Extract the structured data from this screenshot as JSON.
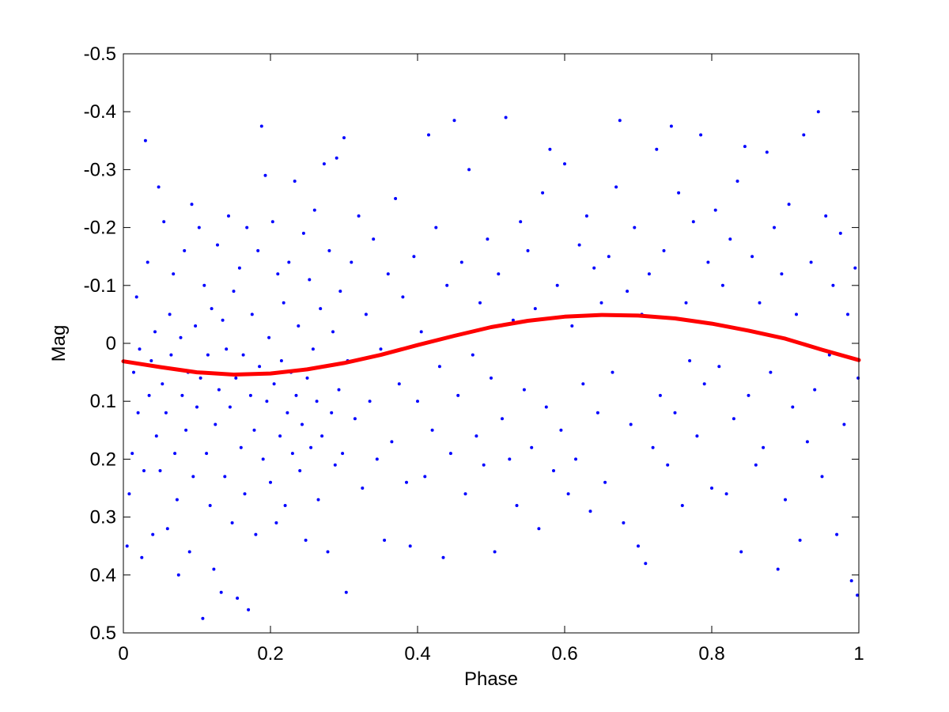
{
  "chart_data": {
    "type": "scatter",
    "title": "",
    "xlabel": "Phase",
    "ylabel": "Mag",
    "xlim": [
      0,
      1
    ],
    "ylim": [
      -0.5,
      0.5
    ],
    "y_reversed": true,
    "grid": false,
    "legend": "none",
    "x_ticks": [
      "0",
      "0.2",
      "0.4",
      "0.6",
      "0.8",
      "1"
    ],
    "x_tick_values": [
      0,
      0.2,
      0.4,
      0.6,
      0.8,
      1
    ],
    "y_ticks": [
      "-0.5",
      "-0.4",
      "-0.3",
      "-0.2",
      "-0.1",
      "0",
      "0.1",
      "0.2",
      "0.3",
      "0.4",
      "0.5"
    ],
    "y_tick_values": [
      -0.5,
      -0.4,
      -0.3,
      -0.2,
      -0.1,
      0,
      0.1,
      0.2,
      0.3,
      0.4,
      0.5
    ],
    "series": [
      {
        "type": "scatter",
        "color": "#0000ff",
        "marker": "dot",
        "points": [
          [
            0.005,
            0.35
          ],
          [
            0.008,
            0.26
          ],
          [
            0.012,
            0.19
          ],
          [
            0.014,
            0.05
          ],
          [
            0.018,
            -0.08
          ],
          [
            0.02,
            0.12
          ],
          [
            0.022,
            0.01
          ],
          [
            0.025,
            0.37
          ],
          [
            0.028,
            0.22
          ],
          [
            0.03,
            -0.35
          ],
          [
            0.033,
            -0.14
          ],
          [
            0.035,
            0.09
          ],
          [
            0.038,
            0.03
          ],
          [
            0.04,
            0.33
          ],
          [
            0.043,
            -0.02
          ],
          [
            0.045,
            0.16
          ],
          [
            0.048,
            -0.27
          ],
          [
            0.05,
            0.22
          ],
          [
            0.053,
            0.07
          ],
          [
            0.055,
            -0.21
          ],
          [
            0.058,
            0.12
          ],
          [
            0.06,
            0.32
          ],
          [
            0.063,
            -0.05
          ],
          [
            0.065,
            0.02
          ],
          [
            0.068,
            -0.12
          ],
          [
            0.07,
            0.19
          ],
          [
            0.073,
            0.27
          ],
          [
            0.075,
            0.4
          ],
          [
            0.078,
            -0.01
          ],
          [
            0.08,
            0.09
          ],
          [
            0.083,
            -0.16
          ],
          [
            0.085,
            0.15
          ],
          [
            0.088,
            0.05
          ],
          [
            0.09,
            0.36
          ],
          [
            0.093,
            -0.24
          ],
          [
            0.095,
            0.23
          ],
          [
            0.098,
            -0.03
          ],
          [
            0.1,
            0.11
          ],
          [
            0.103,
            -0.2
          ],
          [
            0.105,
            0.06
          ],
          [
            0.108,
            0.475
          ],
          [
            0.11,
            -0.1
          ],
          [
            0.113,
            0.19
          ],
          [
            0.115,
            0.02
          ],
          [
            0.118,
            0.28
          ],
          [
            0.12,
            -0.06
          ],
          [
            0.123,
            0.39
          ],
          [
            0.125,
            0.14
          ],
          [
            0.128,
            -0.17
          ],
          [
            0.13,
            0.08
          ],
          [
            0.133,
            0.43
          ],
          [
            0.135,
            -0.04
          ],
          [
            0.138,
            0.23
          ],
          [
            0.14,
            0.01
          ],
          [
            0.143,
            -0.22
          ],
          [
            0.145,
            0.11
          ],
          [
            0.148,
            0.31
          ],
          [
            0.15,
            -0.09
          ],
          [
            0.153,
            0.06
          ],
          [
            0.155,
            0.44
          ],
          [
            0.158,
            -0.13
          ],
          [
            0.16,
            0.18
          ],
          [
            0.163,
            0.02
          ],
          [
            0.165,
            0.26
          ],
          [
            0.168,
            -0.2
          ],
          [
            0.17,
            0.46
          ],
          [
            0.173,
            0.09
          ],
          [
            0.175,
            -0.05
          ],
          [
            0.178,
            0.15
          ],
          [
            0.18,
            0.33
          ],
          [
            0.183,
            -0.16
          ],
          [
            0.185,
            0.04
          ],
          [
            0.188,
            -0.375
          ],
          [
            0.19,
            0.2
          ],
          [
            0.193,
            -0.29
          ],
          [
            0.195,
            0.1
          ],
          [
            0.198,
            -0.01
          ],
          [
            0.2,
            0.24
          ],
          [
            0.203,
            -0.21
          ],
          [
            0.205,
            0.07
          ],
          [
            0.208,
            0.31
          ],
          [
            0.21,
            -0.12
          ],
          [
            0.213,
            0.16
          ],
          [
            0.215,
            0.03
          ],
          [
            0.218,
            -0.07
          ],
          [
            0.22,
            0.28
          ],
          [
            0.223,
            0.12
          ],
          [
            0.225,
            -0.14
          ],
          [
            0.228,
            0.05
          ],
          [
            0.23,
            0.19
          ],
          [
            0.233,
            -0.28
          ],
          [
            0.235,
            0.09
          ],
          [
            0.238,
            -0.03
          ],
          [
            0.24,
            0.22
          ],
          [
            0.243,
            0.14
          ],
          [
            0.245,
            -0.19
          ],
          [
            0.248,
            0.34
          ],
          [
            0.25,
            0.06
          ],
          [
            0.253,
            -0.11
          ],
          [
            0.255,
            0.18
          ],
          [
            0.258,
            0.01
          ],
          [
            0.26,
            -0.23
          ],
          [
            0.263,
            0.1
          ],
          [
            0.265,
            0.27
          ],
          [
            0.268,
            -0.06
          ],
          [
            0.27,
            0.16
          ],
          [
            0.273,
            -0.31
          ],
          [
            0.275,
            0.04
          ],
          [
            0.278,
            0.36
          ],
          [
            0.28,
            -0.16
          ],
          [
            0.283,
            0.12
          ],
          [
            0.285,
            -0.02
          ],
          [
            0.288,
            0.21
          ],
          [
            0.29,
            -0.32
          ],
          [
            0.293,
            0.08
          ],
          [
            0.295,
            -0.09
          ],
          [
            0.298,
            0.19
          ],
          [
            0.3,
            -0.355
          ],
          [
            0.303,
            0.43
          ],
          [
            0.305,
            0.03
          ],
          [
            0.31,
            -0.14
          ],
          [
            0.315,
            0.13
          ],
          [
            0.32,
            -0.22
          ],
          [
            0.325,
            0.25
          ],
          [
            0.33,
            -0.05
          ],
          [
            0.335,
            0.1
          ],
          [
            0.34,
            -0.18
          ],
          [
            0.345,
            0.2
          ],
          [
            0.35,
            0.01
          ],
          [
            0.355,
            0.34
          ],
          [
            0.36,
            -0.12
          ],
          [
            0.365,
            0.17
          ],
          [
            0.37,
            -0.25
          ],
          [
            0.375,
            0.07
          ],
          [
            0.38,
            -0.08
          ],
          [
            0.385,
            0.24
          ],
          [
            0.39,
            0.35
          ],
          [
            0.395,
            -0.15
          ],
          [
            0.4,
            0.1
          ],
          [
            0.405,
            -0.02
          ],
          [
            0.41,
            0.23
          ],
          [
            0.415,
            -0.36
          ],
          [
            0.42,
            0.15
          ],
          [
            0.425,
            -0.2
          ],
          [
            0.43,
            0.04
          ],
          [
            0.435,
            0.37
          ],
          [
            0.44,
            -0.1
          ],
          [
            0.445,
            0.19
          ],
          [
            0.45,
            -0.385
          ],
          [
            0.455,
            0.09
          ],
          [
            0.46,
            -0.14
          ],
          [
            0.465,
            0.26
          ],
          [
            0.47,
            -0.3
          ],
          [
            0.475,
            0.02
          ],
          [
            0.48,
            0.16
          ],
          [
            0.485,
            -0.07
          ],
          [
            0.49,
            0.21
          ],
          [
            0.495,
            -0.18
          ],
          [
            0.5,
            0.06
          ],
          [
            0.505,
            0.36
          ],
          [
            0.51,
            -0.12
          ],
          [
            0.515,
            0.13
          ],
          [
            0.52,
            -0.39
          ],
          [
            0.525,
            0.2
          ],
          [
            0.53,
            -0.04
          ],
          [
            0.535,
            0.28
          ],
          [
            0.54,
            -0.21
          ],
          [
            0.545,
            0.08
          ],
          [
            0.55,
            -0.16
          ],
          [
            0.555,
            0.18
          ],
          [
            0.56,
            -0.06
          ],
          [
            0.565,
            0.32
          ],
          [
            0.57,
            -0.26
          ],
          [
            0.575,
            0.11
          ],
          [
            0.58,
            -0.335
          ],
          [
            0.585,
            0.22
          ],
          [
            0.59,
            -0.1
          ],
          [
            0.595,
            0.15
          ],
          [
            0.6,
            -0.31
          ],
          [
            0.605,
            0.26
          ],
          [
            0.61,
            -0.03
          ],
          [
            0.615,
            0.2
          ],
          [
            0.62,
            -0.17
          ],
          [
            0.625,
            0.07
          ],
          [
            0.63,
            -0.22
          ],
          [
            0.635,
            0.29
          ],
          [
            0.64,
            -0.13
          ],
          [
            0.645,
            0.12
          ],
          [
            0.65,
            -0.07
          ],
          [
            0.655,
            0.24
          ],
          [
            0.66,
            -0.15
          ],
          [
            0.665,
            0.05
          ],
          [
            0.67,
            -0.27
          ],
          [
            0.675,
            -0.385
          ],
          [
            0.68,
            0.31
          ],
          [
            0.685,
            -0.09
          ],
          [
            0.69,
            0.14
          ],
          [
            0.695,
            -0.2
          ],
          [
            0.7,
            0.35
          ],
          [
            0.705,
            -0.05
          ],
          [
            0.71,
            0.38
          ],
          [
            0.715,
            -0.12
          ],
          [
            0.72,
            0.18
          ],
          [
            0.725,
            -0.335
          ],
          [
            0.73,
            0.09
          ],
          [
            0.735,
            -0.16
          ],
          [
            0.74,
            0.21
          ],
          [
            0.745,
            -0.375
          ],
          [
            0.75,
            0.12
          ],
          [
            0.755,
            -0.26
          ],
          [
            0.76,
            0.28
          ],
          [
            0.765,
            -0.07
          ],
          [
            0.77,
            0.03
          ],
          [
            0.775,
            -0.21
          ],
          [
            0.78,
            0.16
          ],
          [
            0.785,
            -0.36
          ],
          [
            0.79,
            0.07
          ],
          [
            0.795,
            -0.14
          ],
          [
            0.8,
            0.25
          ],
          [
            0.805,
            -0.23
          ],
          [
            0.81,
            0.04
          ],
          [
            0.815,
            -0.1
          ],
          [
            0.82,
            0.26
          ],
          [
            0.825,
            -0.18
          ],
          [
            0.83,
            0.13
          ],
          [
            0.835,
            -0.28
          ],
          [
            0.84,
            0.36
          ],
          [
            0.845,
            -0.34
          ],
          [
            0.85,
            0.09
          ],
          [
            0.855,
            -0.15
          ],
          [
            0.86,
            0.21
          ],
          [
            0.865,
            -0.07
          ],
          [
            0.87,
            0.18
          ],
          [
            0.875,
            -0.33
          ],
          [
            0.88,
            0.05
          ],
          [
            0.885,
            -0.2
          ],
          [
            0.89,
            0.39
          ],
          [
            0.895,
            -0.12
          ],
          [
            0.9,
            0.27
          ],
          [
            0.905,
            -0.24
          ],
          [
            0.91,
            0.11
          ],
          [
            0.915,
            -0.05
          ],
          [
            0.92,
            0.34
          ],
          [
            0.925,
            -0.36
          ],
          [
            0.93,
            0.17
          ],
          [
            0.935,
            -0.14
          ],
          [
            0.94,
            0.08
          ],
          [
            0.945,
            -0.4
          ],
          [
            0.95,
            0.23
          ],
          [
            0.955,
            -0.22
          ],
          [
            0.96,
            0.02
          ],
          [
            0.965,
            -0.1
          ],
          [
            0.97,
            0.33
          ],
          [
            0.975,
            -0.19
          ],
          [
            0.98,
            0.14
          ],
          [
            0.985,
            -0.05
          ],
          [
            0.99,
            0.41
          ],
          [
            0.995,
            -0.13
          ],
          [
            0.998,
            0.435
          ],
          [
            0.999,
            0.06
          ]
        ]
      },
      {
        "type": "line",
        "color": "#ff0000",
        "points": [
          [
            0,
            0.031
          ],
          [
            0.05,
            0.041
          ],
          [
            0.1,
            0.05
          ],
          [
            0.15,
            0.054
          ],
          [
            0.2,
            0.052
          ],
          [
            0.25,
            0.045
          ],
          [
            0.3,
            0.034
          ],
          [
            0.35,
            0.02
          ],
          [
            0.4,
            0.003
          ],
          [
            0.45,
            -0.013
          ],
          [
            0.5,
            -0.028
          ],
          [
            0.55,
            -0.039
          ],
          [
            0.6,
            -0.046
          ],
          [
            0.65,
            -0.049
          ],
          [
            0.7,
            -0.048
          ],
          [
            0.75,
            -0.043
          ],
          [
            0.8,
            -0.034
          ],
          [
            0.85,
            -0.022
          ],
          [
            0.9,
            -0.008
          ],
          [
            0.95,
            0.011
          ],
          [
            1.0,
            0.029
          ]
        ]
      }
    ]
  }
}
